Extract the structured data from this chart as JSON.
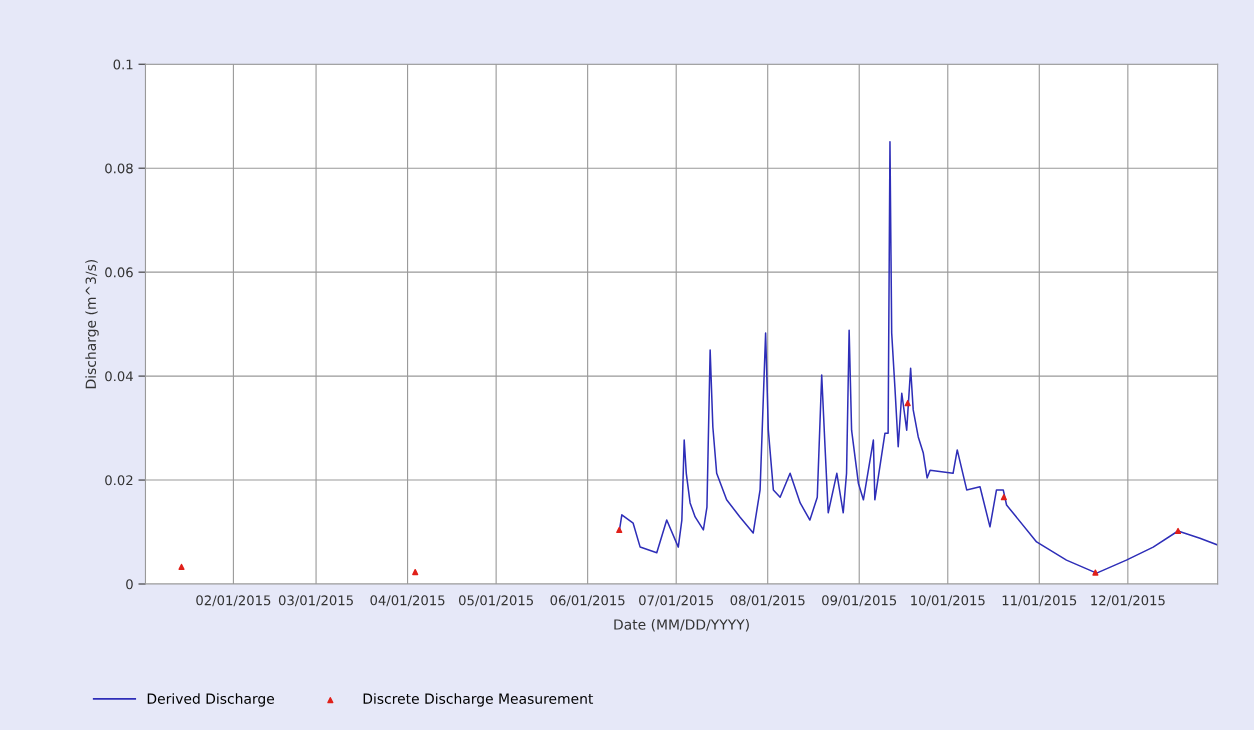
{
  "chart_data": {
    "type": "line",
    "xlabel": "Date (MM/DD/YYYY)",
    "ylabel": "Discharge (m^3/s)",
    "xlim": [
      "2015-01-02T05:00",
      "2015-12-31T10:00"
    ],
    "ylim": [
      0,
      0.1
    ],
    "xticks": [
      {
        "value": "2015-02-01",
        "label": "02/01/2015"
      },
      {
        "value": "2015-03-01",
        "label": "03/01/2015"
      },
      {
        "value": "2015-04-01",
        "label": "04/01/2015"
      },
      {
        "value": "2015-05-01",
        "label": "05/01/2015"
      },
      {
        "value": "2015-06-01",
        "label": "06/01/2015"
      },
      {
        "value": "2015-07-01",
        "label": "07/01/2015"
      },
      {
        "value": "2015-08-01",
        "label": "08/01/2015"
      },
      {
        "value": "2015-09-01",
        "label": "09/01/2015"
      },
      {
        "value": "2015-10-01",
        "label": "10/01/2015"
      },
      {
        "value": "2015-11-01",
        "label": "11/01/2015"
      },
      {
        "value": "2015-12-01",
        "label": "12/01/2015"
      }
    ],
    "yticks": [
      0,
      0.02,
      0.04,
      0.06,
      0.08,
      0.1
    ],
    "grid": true,
    "legend": "bottom left",
    "series": [
      {
        "name": "Derived Discharge",
        "color": "#2e2eb8",
        "marker": "none",
        "line_style": "solid",
        "x": [
          "2015-06-11T19:00",
          "2015-06-12T14:00",
          "2015-06-16T10:00",
          "2015-06-18T19:00",
          "2015-06-24T10:00",
          "2015-06-27T19:00",
          "2015-07-01T17:00",
          "2015-07-02T22:00",
          "2015-07-03T17:00",
          "2015-07-04T10:00",
          "2015-07-05T17:00",
          "2015-07-07T10:00",
          "2015-07-10T05:00",
          "2015-07-11T10:00",
          "2015-07-12T12:00",
          "2015-07-13T10:00",
          "2015-07-14T17:00",
          "2015-07-18T02:00",
          "2015-07-22T14:00",
          "2015-07-27T02:00",
          "2015-07-29T10:00",
          "2015-07-31T07:00",
          "2015-08-01T05:00",
          "2015-08-02T22:00",
          "2015-08-05T05:00",
          "2015-08-08T14:00",
          "2015-08-12T00:00",
          "2015-08-15T07:00",
          "2015-08-17T19:00",
          "2015-08-19T07:00",
          "2015-08-20T10:00",
          "2015-08-21T12:00",
          "2015-08-24T10:00",
          "2015-08-26T14:00",
          "2015-08-27T17:00",
          "2015-08-28T14:00",
          "2015-08-29T10:00",
          "2015-08-31T17:00",
          "2015-09-02T10:00",
          "2015-09-05T19:00",
          "2015-09-06T07:00",
          "2015-09-09T17:00",
          "2015-09-10T19:00",
          "2015-09-11T10:00",
          "2015-09-12T00:00",
          "2015-09-13T02:00",
          "2015-09-14T05:00",
          "2015-09-15T10:00",
          "2015-09-17T02:00",
          "2015-09-18T10:00",
          "2015-09-19T07:00",
          "2015-09-21T00:00",
          "2015-09-22T17:00",
          "2015-09-24T00:00",
          "2015-09-25T00:00",
          "2015-10-02T19:00",
          "2015-10-04T05:00",
          "2015-10-07T10:00",
          "2015-10-11T22:00",
          "2015-10-15T07:00",
          "2015-10-17T12:00",
          "2015-10-19T19:00",
          "2015-10-20T22:00",
          "2015-10-31T02:00",
          "2015-11-10T05:00",
          "2015-11-20T10:00",
          "2015-11-30T12:00",
          "2015-12-09T14:00",
          "2015-12-18T00:00",
          "2015-12-25T10:00",
          "2015-12-31T10:00"
        ],
        "values": [
          0.0104,
          0.0133,
          0.0117,
          0.0071,
          0.006,
          0.0123,
          0.0071,
          0.0123,
          0.0277,
          0.0213,
          0.0156,
          0.0129,
          0.0104,
          0.0148,
          0.045,
          0.0302,
          0.0213,
          0.0162,
          0.0129,
          0.0098,
          0.0181,
          0.0483,
          0.0296,
          0.0181,
          0.0167,
          0.0213,
          0.0156,
          0.0123,
          0.0167,
          0.0402,
          0.0264,
          0.0137,
          0.0213,
          0.0137,
          0.0213,
          0.0488,
          0.0296,
          0.0194,
          0.0162,
          0.0277,
          0.0162,
          0.029,
          0.029,
          0.0851,
          0.0483,
          0.0379,
          0.0264,
          0.0367,
          0.0296,
          0.0415,
          0.0335,
          0.0283,
          0.0252,
          0.0204,
          0.0219,
          0.0213,
          0.0258,
          0.0181,
          0.0187,
          0.011,
          0.0181,
          0.0181,
          0.0152,
          0.0081,
          0.0046,
          0.0021,
          0.0046,
          0.0071,
          0.0102,
          0.0088,
          0.0075
        ]
      },
      {
        "name": "Discrete Discharge Measurement",
        "type": "scatter",
        "color": "#e0201a",
        "marker": "triangle",
        "x": [
          "2015-01-14T10:00",
          "2015-04-03T14:00",
          "2015-06-11T17:00",
          "2015-09-17T10:00",
          "2015-10-20T00:00",
          "2015-11-20T00:00",
          "2015-12-18T00:00"
        ],
        "values": [
          0.0033,
          0.0023,
          0.0104,
          0.0348,
          0.0167,
          0.0022,
          0.0102
        ]
      }
    ]
  }
}
